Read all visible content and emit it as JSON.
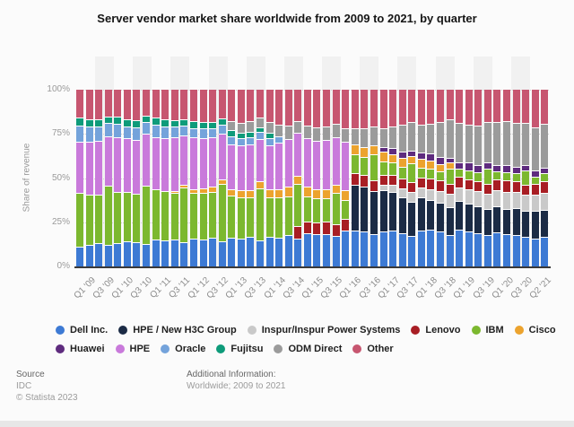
{
  "title": "Server vendor market share worldwide from 2009 to 2021, by quarter",
  "y_axis": {
    "label": "Share of revenue",
    "ticks": [
      {
        "pct": 0,
        "label": "0%"
      },
      {
        "pct": 25,
        "label": "25%"
      },
      {
        "pct": 50,
        "label": "50%"
      },
      {
        "pct": 75,
        "label": "75%"
      },
      {
        "pct": 100,
        "label": "100%"
      }
    ]
  },
  "x_axis": {
    "tick_labels": [
      "Q1 '09",
      "Q3 '09",
      "Q1 '10",
      "Q3 '10",
      "Q1 '11",
      "Q3 '11",
      "Q1 '12",
      "Q3 '12",
      "Q1 '13",
      "Q3 '13",
      "Q1 '14",
      "Q3 '14",
      "Q1 '15",
      "Q3 '15",
      "Q1 '16",
      "Q3 '16",
      "Q1 '17",
      "Q3 '17",
      "Q1 '18",
      "Q3 '18",
      "Q1 '19",
      "Q3 '19",
      "Q1 '20",
      "Q3 '20",
      "Q2 '21"
    ]
  },
  "footer": {
    "source_label": "Source",
    "source_value": "IDC",
    "copyright": "© Statista 2023",
    "additional_label": "Additional Information:",
    "additional_value": "Worldwide; 2009 to 2021"
  },
  "chart_data": {
    "type": "bar",
    "subtype": "stacked-100-percent",
    "title": "Server vendor market share worldwide from 2009 to 2021, by quarter",
    "xlabel": "",
    "ylabel": "Share of revenue",
    "unit": "% of revenue",
    "ylim": [
      0,
      100
    ],
    "gridlines": [
      25,
      50,
      75,
      100
    ],
    "legend_position": "bottom",
    "categories": [
      "Q1 '09",
      "Q2 '09",
      "Q3 '09",
      "Q4 '09",
      "Q1 '10",
      "Q2 '10",
      "Q3 '10",
      "Q4 '10",
      "Q1 '11",
      "Q2 '11",
      "Q3 '11",
      "Q4 '11",
      "Q1 '12",
      "Q2 '12",
      "Q3 '12",
      "Q4 '12",
      "Q1 '13",
      "Q2 '13",
      "Q3 '13",
      "Q4 '13",
      "Q1 '14",
      "Q2 '14",
      "Q3 '14",
      "Q4 '14",
      "Q1 '15",
      "Q2 '15",
      "Q3 '15",
      "Q4 '15",
      "Q1 '16",
      "Q2 '16",
      "Q3 '16",
      "Q4 '16",
      "Q1 '17",
      "Q2 '17",
      "Q3 '17",
      "Q4 '17",
      "Q1 '18",
      "Q2 '18",
      "Q3 '18",
      "Q4 '18",
      "Q1 '19",
      "Q2 '19",
      "Q3 '19",
      "Q4 '19",
      "Q1 '20",
      "Q2 '20",
      "Q3 '20",
      "Q4 '20",
      "Q1 '21",
      "Q2 '21"
    ],
    "series": [
      {
        "name": "Dell Inc.",
        "color": "#3D7AD4",
        "values": [
          10.5,
          11.5,
          12.5,
          11.5,
          12.5,
          13.5,
          13,
          12,
          14.5,
          14,
          14.5,
          13,
          15,
          14.5,
          15,
          13.5,
          15.5,
          15,
          16,
          14.5,
          16,
          15.5,
          16.5,
          15,
          17.5,
          17,
          17,
          16,
          18.5,
          17.5,
          17,
          16,
          17.5,
          18,
          17,
          16.5,
          19,
          19.5,
          18.5,
          17.5,
          19.5,
          18.5,
          17.5,
          16.5,
          18,
          17,
          16.5,
          15.5,
          14.5,
          15.5
        ]
      },
      {
        "name": "HPE / New H3C Group",
        "color": "#1B2B45",
        "values": [
          0,
          0,
          0,
          0,
          0,
          0,
          0,
          0,
          0,
          0,
          0,
          0,
          0,
          0,
          0,
          0,
          0,
          0,
          0,
          0,
          0,
          0,
          0,
          0,
          0,
          0,
          0,
          0,
          0,
          23.5,
          22,
          21.5,
          21,
          20.5,
          19,
          18.5,
          18,
          16.5,
          16,
          15.5,
          15.5,
          15,
          14.5,
          14,
          14.5,
          14,
          14.5,
          14,
          14.5,
          15
        ]
      },
      {
        "name": "Inspur/Inspur Power Systems",
        "color": "#C9C9C9",
        "values": [
          0,
          0,
          0,
          0,
          0,
          0,
          0,
          0,
          0,
          0,
          0,
          0,
          0,
          0,
          0,
          0,
          0,
          0,
          0,
          0,
          0,
          0,
          0,
          0,
          0,
          0,
          0,
          0,
          0,
          0,
          0,
          0,
          2.5,
          3.5,
          4.5,
          5.5,
          5,
          6,
          6.5,
          8,
          7,
          7.5,
          8,
          8.5,
          8.5,
          9.5,
          9,
          9,
          8.5,
          9
        ]
      },
      {
        "name": "Lenovo",
        "color": "#A81E24",
        "values": [
          0,
          0,
          0,
          0,
          0,
          0,
          0,
          0,
          0,
          0,
          0,
          0,
          0,
          0,
          0,
          0,
          0,
          0,
          0,
          0,
          0,
          0,
          0,
          7,
          6.5,
          6,
          6.5,
          6,
          6.5,
          6,
          5.5,
          5.5,
          5,
          5,
          5.5,
          5.5,
          5.5,
          6,
          6,
          5.5,
          6,
          5.5,
          5.5,
          5.5,
          6,
          6.5,
          6,
          5.5,
          6,
          6.5
        ]
      },
      {
        "name": "IBM",
        "color": "#7CB82F",
        "values": [
          30.5,
          28.5,
          27.5,
          33.5,
          29,
          28,
          27,
          33,
          28.5,
          27.5,
          26.5,
          31,
          26,
          26,
          24.5,
          32,
          24,
          23.5,
          22.5,
          30,
          22.5,
          22,
          21,
          24,
          13.5,
          13,
          12.5,
          17,
          10,
          9.5,
          9,
          13.5,
          7,
          6.5,
          6,
          10.5,
          5.5,
          5,
          4.5,
          8.5,
          4.5,
          4.5,
          4.5,
          8,
          4.5,
          4,
          4,
          7.5,
          4,
          4.5
        ]
      },
      {
        "name": "Cisco",
        "color": "#ECA32E",
        "values": [
          0,
          0,
          0,
          0,
          0,
          0,
          0,
          0,
          0,
          0,
          1,
          1.5,
          2,
          2.5,
          3,
          3,
          3.5,
          4,
          4,
          4,
          4.5,
          4.5,
          5,
          4.5,
          5.5,
          5,
          5,
          4.5,
          5.5,
          5,
          5,
          4.5,
          5,
          4.5,
          4.5,
          4,
          4.5,
          4.5,
          4,
          3.5,
          0,
          0,
          0,
          0,
          0,
          0,
          0,
          0,
          0,
          0
        ]
      },
      {
        "name": "Huawei",
        "color": "#5E2B7E",
        "values": [
          0,
          0,
          0,
          0,
          0,
          0,
          0,
          0,
          0,
          0,
          0,
          0,
          0,
          0,
          0,
          0,
          0,
          0,
          0,
          0,
          0,
          0,
          0,
          0,
          0,
          0,
          0,
          0,
          0,
          0,
          0,
          0,
          2.5,
          3,
          3.5,
          3,
          3.5,
          4,
          4,
          3,
          3.5,
          4.5,
          4,
          3.5,
          3.5,
          4,
          3.5,
          3,
          3,
          3
        ]
      },
      {
        "name": "HPE",
        "color": "#C97ADB",
        "values": [
          29,
          30,
          30.5,
          28,
          31,
          30,
          30.5,
          29.5,
          29.5,
          30,
          30.5,
          27.5,
          29,
          28.5,
          26.5,
          25.5,
          25.5,
          25,
          26,
          24.5,
          25,
          25.5,
          26,
          24.5,
          26.5,
          26,
          26.5,
          25.5,
          25.5,
          0,
          0,
          0,
          0,
          0,
          0,
          0,
          0,
          0,
          0,
          0,
          0,
          0,
          0,
          0,
          0,
          0,
          0,
          0,
          0,
          0
        ]
      },
      {
        "name": "Oracle",
        "color": "#74A3DB",
        "values": [
          9,
          8.5,
          8,
          7.5,
          7.5,
          7,
          7,
          6.5,
          7,
          6.5,
          6,
          6,
          5.5,
          5.5,
          5,
          5,
          4.5,
          4.5,
          4,
          4,
          4,
          3.5,
          0,
          0,
          0,
          0,
          0,
          0,
          0,
          0,
          0,
          0,
          0,
          0,
          0,
          0,
          0,
          0,
          0,
          0,
          0,
          0,
          0,
          0,
          0,
          0,
          0,
          0,
          0,
          0
        ]
      },
      {
        "name": "Fujitsu",
        "color": "#0E9B7A",
        "values": [
          5,
          4.5,
          4.5,
          4,
          4.5,
          4,
          4,
          4,
          4.5,
          4,
          3.5,
          3.5,
          4,
          3.5,
          3,
          3.5,
          3.5,
          3,
          3,
          3,
          3,
          0,
          0,
          0,
          0,
          0,
          0,
          0,
          0,
          0,
          0,
          0,
          0,
          0,
          0,
          0,
          0,
          0,
          0,
          0,
          0,
          0,
          0,
          0,
          0,
          0,
          0,
          0,
          0,
          0
        ]
      },
      {
        "name": "ODM Direct",
        "color": "#9B9B9B",
        "values": [
          0,
          0,
          0,
          0,
          0,
          0,
          0,
          0,
          0,
          0,
          0,
          0,
          0,
          0,
          0,
          0,
          5,
          5.5,
          6,
          5.5,
          6,
          6.5,
          7,
          6.5,
          7,
          7.5,
          7.5,
          7,
          7.5,
          8,
          9,
          9.5,
          9.5,
          11.5,
          14,
          15.5,
          15,
          16.5,
          19.5,
          21.5,
          21,
          20,
          21.5,
          22,
          23.5,
          24.5,
          24,
          23,
          23,
          24
        ]
      },
      {
        "name": "Other",
        "color": "#C75670",
        "values": [
          16,
          17,
          17,
          15.5,
          15.5,
          17,
          17.5,
          15,
          16,
          17,
          17.5,
          17,
          18,
          18.5,
          18,
          16.5,
          18.5,
          19,
          18.5,
          16.5,
          19,
          19.5,
          20,
          18,
          20,
          20.5,
          20,
          19,
          21,
          20,
          19.5,
          19,
          20,
          19.5,
          19,
          18.5,
          19.5,
          19,
          18,
          17.5,
          18.5,
          19.5,
          19.5,
          18,
          18,
          17.5,
          18.5,
          18.5,
          20.5,
          19
        ]
      }
    ]
  }
}
